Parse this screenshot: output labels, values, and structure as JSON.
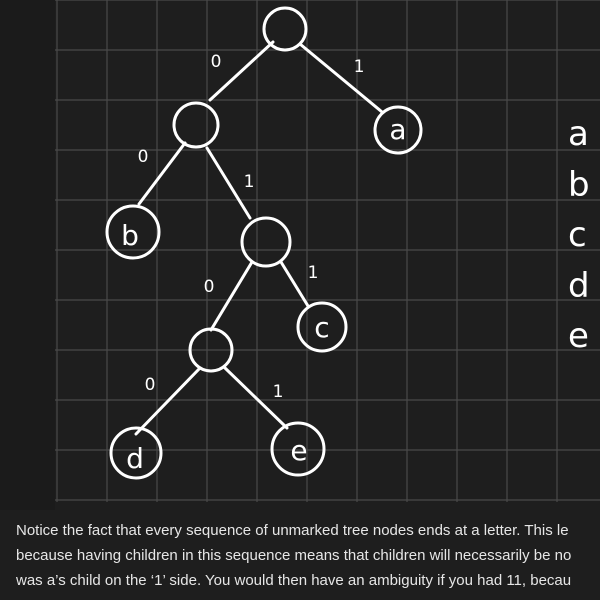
{
  "tree": {
    "node_letters": {
      "a": "a",
      "b": "b",
      "c": "c",
      "d": "d",
      "e": "e"
    },
    "edge_labels": {
      "root_left": "0",
      "root_right": "1",
      "n1_left": "0",
      "n1_right": "1",
      "n2_left": "0",
      "n2_right": "1",
      "n3_left": "0",
      "n3_right": "1"
    }
  },
  "side_list": [
    "a",
    "b",
    "c",
    "d",
    "e"
  ],
  "paragraph": {
    "line1": "Notice the fact that every sequence of unmarked tree nodes ends at a letter. This le",
    "line2": "because having children in this sequence means that children will necessarily be no",
    "line3": "was a’s child on the ‘1’ side. You would then have an ambiguity if you had 11, becau"
  },
  "colors": {
    "background": "#1e1e1e",
    "grid": "#4a4a4a",
    "ink": "#ffffff",
    "text": "#e6e6e6"
  }
}
